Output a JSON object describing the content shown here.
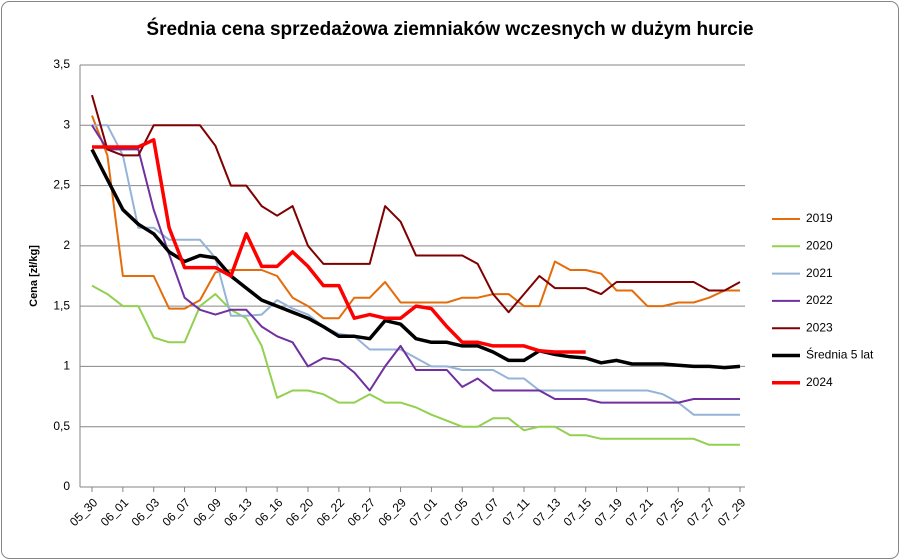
{
  "chart_data": {
    "type": "line",
    "title": "Średnia cena sprzedażowa ziemniaków  wczesnych w dużym hurcie",
    "y_label": "Cena [zł/kg]",
    "categories": [
      "05_30",
      null,
      "06_01",
      null,
      "06_03",
      null,
      "06_07",
      null,
      "06_09",
      null,
      "06_13",
      null,
      "06_16",
      null,
      "06_20",
      null,
      "06_22",
      null,
      "06_27",
      null,
      "06_29",
      null,
      "07_01",
      null,
      "07_05",
      null,
      "07_07",
      null,
      "07_11",
      null,
      "07_13",
      null,
      "07_15",
      null,
      "07_19",
      null,
      "07_21",
      null,
      "07_25",
      null,
      "07_27",
      null,
      "07_29"
    ],
    "ylim": [
      0,
      3.5
    ],
    "yticks": [
      0,
      {
        "value": 0.5,
        "label": "0,5"
      },
      1,
      {
        "value": 1.5,
        "label": "1,5"
      },
      2,
      {
        "value": 2.5,
        "label": "2,5"
      },
      3,
      {
        "value": 3.5,
        "label": "3,5"
      }
    ],
    "grid": true,
    "legend": "right",
    "series": [
      {
        "name": "2019",
        "color": "#e46c0a",
        "width": 2,
        "values": [
          3.08,
          2.75,
          1.75,
          1.75,
          1.75,
          1.48,
          1.48,
          1.55,
          1.78,
          1.8,
          1.8,
          1.8,
          1.75,
          1.57,
          1.5,
          1.4,
          1.4,
          1.57,
          1.57,
          1.7,
          1.53,
          1.53,
          1.53,
          1.53,
          1.57,
          1.57,
          1.6,
          1.6,
          1.5,
          1.5,
          1.87,
          1.8,
          1.8,
          1.77,
          1.63,
          1.63,
          1.5,
          1.5,
          1.53,
          1.53,
          1.57,
          1.63,
          1.63
        ]
      },
      {
        "name": "2020",
        "color": "#92d050",
        "width": 2,
        "values": [
          1.67,
          1.6,
          1.5,
          1.5,
          1.24,
          1.2,
          1.2,
          1.5,
          1.6,
          1.47,
          1.4,
          1.17,
          0.74,
          0.8,
          0.8,
          0.77,
          0.7,
          0.7,
          0.77,
          0.7,
          0.7,
          0.66,
          0.6,
          0.55,
          0.5,
          0.5,
          0.57,
          0.57,
          0.47,
          0.5,
          0.5,
          0.43,
          0.43,
          0.4,
          0.4,
          0.4,
          0.4,
          0.4,
          0.4,
          0.4,
          0.35,
          0.35,
          0.35
        ]
      },
      {
        "name": "2021",
        "color": "#95b3d7",
        "width": 2,
        "values": [
          3.0,
          3.0,
          2.75,
          2.15,
          2.15,
          2.05,
          2.05,
          2.05,
          1.9,
          1.42,
          1.42,
          1.43,
          1.55,
          1.48,
          1.43,
          1.33,
          1.27,
          1.25,
          1.14,
          1.14,
          1.14,
          1.07,
          1.0,
          1.0,
          0.97,
          0.97,
          0.97,
          0.9,
          0.9,
          0.8,
          0.8,
          0.8,
          0.8,
          0.8,
          0.8,
          0.8,
          0.8,
          0.77,
          0.7,
          0.6,
          0.6,
          0.6,
          0.6
        ]
      },
      {
        "name": "2022",
        "color": "#7030a0",
        "width": 2,
        "values": [
          3.0,
          2.8,
          2.8,
          2.8,
          2.3,
          1.93,
          1.57,
          1.47,
          1.43,
          1.47,
          1.47,
          1.33,
          1.25,
          1.2,
          1.0,
          1.07,
          1.05,
          0.95,
          0.8,
          1.0,
          1.17,
          0.97,
          0.97,
          0.97,
          0.83,
          0.9,
          0.8,
          0.8,
          0.8,
          0.8,
          0.73,
          0.73,
          0.73,
          0.7,
          0.7,
          0.7,
          0.7,
          0.7,
          0.7,
          0.73,
          0.73,
          0.73,
          0.73
        ]
      },
      {
        "name": "2023",
        "color": "#7f0000",
        "width": 2,
        "values": [
          3.25,
          2.8,
          2.75,
          2.75,
          3.0,
          3.0,
          3.0,
          3.0,
          2.83,
          2.5,
          2.5,
          2.33,
          2.25,
          2.33,
          2.0,
          1.85,
          1.85,
          1.85,
          1.85,
          2.33,
          2.2,
          1.92,
          1.92,
          1.92,
          1.92,
          1.85,
          1.6,
          1.45,
          1.6,
          1.75,
          1.65,
          1.65,
          1.65,
          1.6,
          1.7,
          1.7,
          1.7,
          1.7,
          1.7,
          1.7,
          1.63,
          1.63,
          1.7
        ]
      },
      {
        "name": "Średnia 5 lat",
        "color": "#000000",
        "width": 3.5,
        "values": [
          2.8,
          2.55,
          2.3,
          2.18,
          2.1,
          1.95,
          1.87,
          1.92,
          1.9,
          1.75,
          1.65,
          1.55,
          1.5,
          1.45,
          1.4,
          1.33,
          1.25,
          1.25,
          1.23,
          1.38,
          1.35,
          1.23,
          1.2,
          1.2,
          1.17,
          1.17,
          1.12,
          1.05,
          1.05,
          1.13,
          1.1,
          1.08,
          1.07,
          1.03,
          1.05,
          1.02,
          1.02,
          1.02,
          1.01,
          1.0,
          1.0,
          0.99,
          1.0
        ]
      },
      {
        "name": "2024",
        "color": "#ff0000",
        "width": 3.5,
        "values": [
          2.82,
          2.82,
          2.82,
          2.82,
          2.88,
          2.15,
          1.82,
          1.82,
          1.82,
          1.75,
          2.1,
          1.83,
          1.83,
          1.95,
          1.83,
          1.67,
          1.67,
          1.4,
          1.43,
          1.4,
          1.4,
          1.5,
          1.48,
          1.33,
          1.2,
          1.2,
          1.17,
          1.17,
          1.17,
          1.13,
          1.12,
          1.12,
          1.12,
          null,
          null,
          null,
          null,
          null,
          null,
          null,
          null,
          null,
          null
        ]
      }
    ]
  }
}
